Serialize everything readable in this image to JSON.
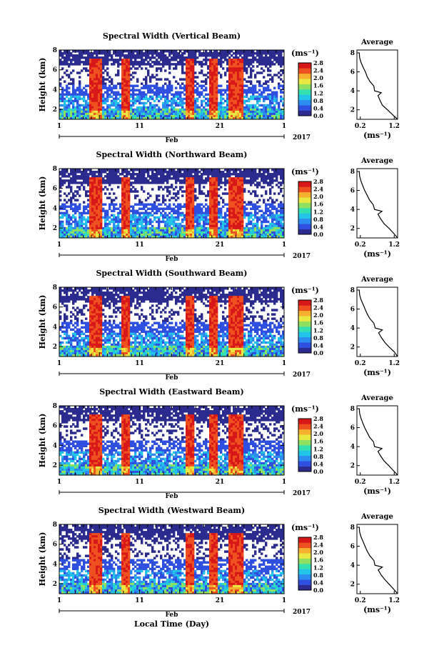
{
  "chart_data": [
    {
      "type": "heatmap",
      "title": "Spectral Width (Vertical Beam)",
      "ylabel": "Height (km)",
      "yticks": [
        "2",
        "4",
        "6",
        "8"
      ],
      "xticks": [
        "1",
        "11",
        "21",
        "1"
      ],
      "month_label": "Feb",
      "year_label": "2017",
      "ylim": [
        1,
        8
      ],
      "colorbar": {
        "unit": "(ms⁻¹)",
        "ticks": [
          "0.0",
          "0.4",
          "0.8",
          "1.2",
          "1.6",
          "2.0",
          "2.4",
          "2.8"
        ]
      },
      "profile": {
        "title": "Average",
        "xlabel": "(ms⁻¹)",
        "xticks": [
          "0.2",
          "1.2"
        ],
        "yticks": [
          "2",
          "4",
          "6",
          "8"
        ],
        "values": [
          [
            1.3,
            1.0
          ],
          [
            1.15,
            1.5
          ],
          [
            1.0,
            2.0
          ],
          [
            0.85,
            2.5
          ],
          [
            0.78,
            3.0
          ],
          [
            0.72,
            3.5
          ],
          [
            0.82,
            3.8
          ],
          [
            0.62,
            4.0
          ],
          [
            0.6,
            4.5
          ],
          [
            0.48,
            5.0
          ],
          [
            0.4,
            5.5
          ],
          [
            0.35,
            6.0
          ],
          [
            0.28,
            6.5
          ],
          [
            0.22,
            7.0
          ],
          [
            0.18,
            7.5
          ],
          [
            0.17,
            8.0
          ]
        ]
      }
    },
    {
      "type": "heatmap",
      "title": "Spectral Width (Northward Beam)",
      "ylabel": "Height (km)",
      "yticks": [
        "2",
        "4",
        "6",
        "8"
      ],
      "xticks": [
        "1",
        "11",
        "21",
        "1"
      ],
      "month_label": "Feb",
      "year_label": "2017",
      "ylim": [
        1,
        8
      ],
      "colorbar": {
        "unit": "(ms⁻¹)",
        "ticks": [
          "0.0",
          "0.4",
          "0.8",
          "1.2",
          "1.6",
          "2.0",
          "2.4",
          "2.8"
        ]
      },
      "profile": {
        "title": "Average",
        "xlabel": "(ms⁻¹)",
        "xticks": [
          "0.2",
          "1.2"
        ],
        "yticks": [
          "2",
          "4",
          "6",
          "8"
        ],
        "values": [
          [
            1.3,
            1.0
          ],
          [
            1.18,
            1.5
          ],
          [
            1.05,
            2.0
          ],
          [
            0.9,
            2.5
          ],
          [
            0.8,
            3.0
          ],
          [
            0.72,
            3.5
          ],
          [
            0.84,
            3.8
          ],
          [
            0.62,
            4.0
          ],
          [
            0.58,
            4.5
          ],
          [
            0.47,
            5.0
          ],
          [
            0.4,
            5.5
          ],
          [
            0.33,
            6.0
          ],
          [
            0.27,
            6.5
          ],
          [
            0.22,
            7.0
          ],
          [
            0.18,
            7.5
          ],
          [
            0.17,
            8.0
          ]
        ]
      }
    },
    {
      "type": "heatmap",
      "title": "Spectral Width (Southward Beam)",
      "ylabel": "Height (km)",
      "yticks": [
        "2",
        "4",
        "6",
        "8"
      ],
      "xticks": [
        "1",
        "11",
        "21",
        "1"
      ],
      "month_label": "Feb",
      "year_label": "2017",
      "ylim": [
        1,
        8
      ],
      "colorbar": {
        "unit": "(ms⁻¹)",
        "ticks": [
          "0.0",
          "0.4",
          "0.8",
          "1.2",
          "1.6",
          "2.0",
          "2.4",
          "2.8"
        ]
      },
      "profile": {
        "title": "Average",
        "xlabel": "(ms⁻¹)",
        "xticks": [
          "0.2",
          "1.2"
        ],
        "yticks": [
          "2",
          "4",
          "6",
          "8"
        ],
        "values": [
          [
            1.3,
            1.0
          ],
          [
            1.2,
            1.5
          ],
          [
            1.05,
            2.0
          ],
          [
            0.92,
            2.5
          ],
          [
            0.82,
            3.0
          ],
          [
            0.74,
            3.5
          ],
          [
            0.85,
            3.8
          ],
          [
            0.64,
            4.0
          ],
          [
            0.6,
            4.5
          ],
          [
            0.48,
            5.0
          ],
          [
            0.4,
            5.5
          ],
          [
            0.34,
            6.0
          ],
          [
            0.28,
            6.5
          ],
          [
            0.22,
            7.0
          ],
          [
            0.18,
            7.5
          ],
          [
            0.17,
            8.0
          ]
        ]
      }
    },
    {
      "type": "heatmap",
      "title": "Spectral Width (Eastward Beam)",
      "ylabel": "Height (km)",
      "yticks": [
        "2",
        "4",
        "6",
        "8"
      ],
      "xticks": [
        "1",
        "11",
        "21",
        "1"
      ],
      "month_label": "Feb",
      "year_label": "2017",
      "ylim": [
        1,
        8
      ],
      "colorbar": {
        "unit": "(ms⁻¹)",
        "ticks": [
          "0.0",
          "0.4",
          "0.8",
          "1.2",
          "1.6",
          "2.0",
          "2.4",
          "2.8"
        ]
      },
      "profile": {
        "title": "Average",
        "xlabel": "(ms⁻¹)",
        "xticks": [
          "0.2",
          "1.2"
        ],
        "yticks": [
          "2",
          "4",
          "6",
          "8"
        ],
        "values": [
          [
            1.3,
            1.0
          ],
          [
            1.17,
            1.5
          ],
          [
            1.04,
            2.0
          ],
          [
            0.9,
            2.5
          ],
          [
            0.8,
            3.0
          ],
          [
            0.72,
            3.5
          ],
          [
            0.84,
            3.8
          ],
          [
            0.62,
            4.0
          ],
          [
            0.59,
            4.5
          ],
          [
            0.47,
            5.0
          ],
          [
            0.4,
            5.5
          ],
          [
            0.33,
            6.0
          ],
          [
            0.27,
            6.5
          ],
          [
            0.22,
            7.0
          ],
          [
            0.18,
            7.5
          ],
          [
            0.17,
            8.0
          ]
        ]
      }
    },
    {
      "type": "heatmap",
      "title": "Spectral Width (Westward Beam)",
      "ylabel": "Height (km)",
      "yticks": [
        "2",
        "4",
        "6",
        "8"
      ],
      "xticks": [
        "1",
        "11",
        "21",
        "1"
      ],
      "month_label": "Feb",
      "year_label": "2017",
      "xlabel": "Local Time (Day)",
      "ylim": [
        1,
        8
      ],
      "colorbar": {
        "unit": "(ms⁻¹)",
        "ticks": [
          "0.0",
          "0.4",
          "0.8",
          "1.2",
          "1.6",
          "2.0",
          "2.4",
          "2.8"
        ]
      },
      "profile": {
        "title": "Average",
        "xlabel": "(ms⁻¹)",
        "xticks": [
          "0.2",
          "1.2"
        ],
        "yticks": [
          "2",
          "4",
          "6",
          "8"
        ],
        "values": [
          [
            1.3,
            1.0
          ],
          [
            1.18,
            1.5
          ],
          [
            1.05,
            2.0
          ],
          [
            0.92,
            2.5
          ],
          [
            0.81,
            3.0
          ],
          [
            0.73,
            3.5
          ],
          [
            0.85,
            3.8
          ],
          [
            0.63,
            4.0
          ],
          [
            0.6,
            4.5
          ],
          [
            0.48,
            5.0
          ],
          [
            0.4,
            5.5
          ],
          [
            0.34,
            6.0
          ],
          [
            0.28,
            6.5
          ],
          [
            0.22,
            7.0
          ],
          [
            0.18,
            7.5
          ],
          [
            0.17,
            8.0
          ]
        ]
      }
    }
  ],
  "colors": {
    "colormap": [
      "#2b2b8f",
      "#2f4fe0",
      "#2d8cf0",
      "#22c4e8",
      "#35e0b0",
      "#8fe060",
      "#e8e840",
      "#f5b030",
      "#ef5020",
      "#d81818"
    ],
    "background": "#ffffff",
    "axis": "#000000"
  }
}
